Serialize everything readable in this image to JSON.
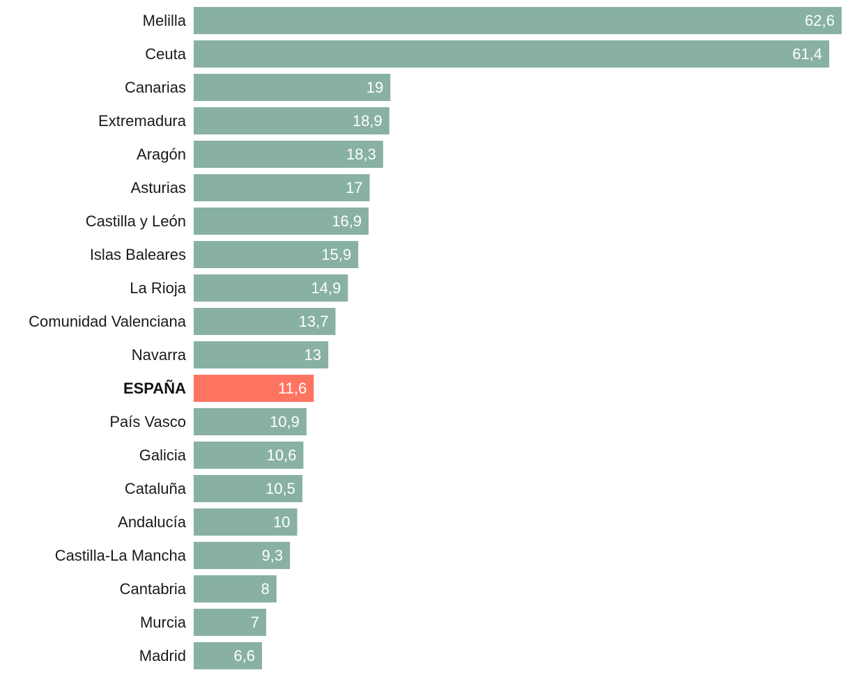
{
  "colors": {
    "bar": "#88b1a3",
    "highlight_bar": "#ff7461",
    "value_text": "#ffffff",
    "label_text": "#1a1a1a"
  },
  "chart_data": {
    "type": "bar",
    "orientation": "horizontal",
    "title": "",
    "xlabel": "",
    "ylabel": "",
    "grid": false,
    "legend": "none",
    "xlim": [
      0,
      62.6
    ],
    "highlight_category": "ESPAÑA",
    "categories": [
      "Melilla",
      "Ceuta",
      "Canarias",
      "Extremadura",
      "Aragón",
      "Asturias",
      "Castilla y León",
      "Islas Baleares",
      "La Rioja",
      "Comunidad Valenciana",
      "Navarra",
      "ESPAÑA",
      "País Vasco",
      "Galicia",
      "Cataluña",
      "Andalucía",
      "Castilla-La Mancha",
      "Cantabria",
      "Murcia",
      "Madrid"
    ],
    "values": [
      62.6,
      61.4,
      19,
      18.9,
      18.3,
      17,
      16.9,
      15.9,
      14.9,
      13.7,
      13,
      11.6,
      10.9,
      10.6,
      10.5,
      10,
      9.3,
      8,
      7,
      6.6
    ],
    "value_labels": [
      "62,6",
      "61,4",
      "19",
      "18,9",
      "18,3",
      "17",
      "16,9",
      "15,9",
      "14,9",
      "13,7",
      "13",
      "11,6",
      "10,9",
      "10,6",
      "10,5",
      "10",
      "9,3",
      "8",
      "7",
      "6,6"
    ]
  }
}
